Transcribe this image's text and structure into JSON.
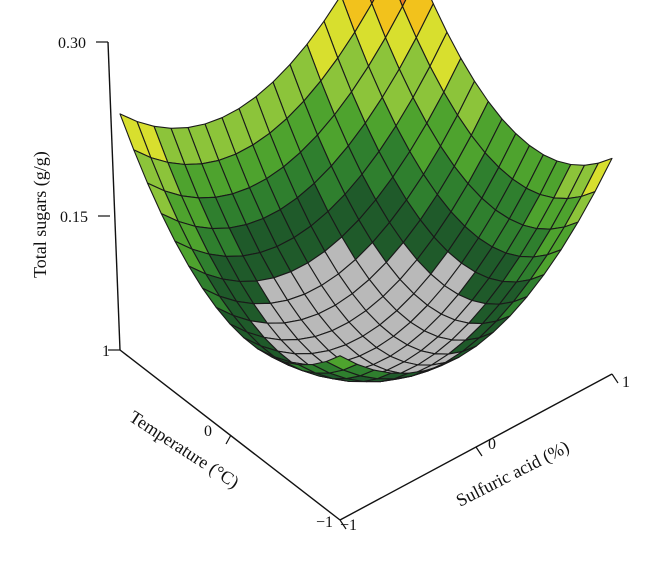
{
  "chart_data": {
    "type": "surface",
    "title": "",
    "xlabel": "Sulfuric acid (%)",
    "ylabel": "Temperature (°C)",
    "zlabel": "Total sugars (g/g)",
    "x_range": [
      -1,
      1
    ],
    "y_range": [
      -1,
      1
    ],
    "z_range": [
      0.0,
      0.3
    ],
    "x_ticks": [
      "−1",
      "0",
      "1"
    ],
    "y_ticks": [
      "−1",
      "0",
      "1"
    ],
    "z_ticks": [
      "0.30",
      "0.15"
    ],
    "grid_size": 16,
    "surface": {
      "model": "quadratic",
      "min_value": 0.05,
      "max_value": 0.295,
      "description_values": {
        "center": 0.05,
        "corner_x_max_y_max": 0.295,
        "corner_x_max_y_min": 0.21,
        "corner_x_min_y_max": 0.23,
        "corner_x_min_y_min": 0.16
      }
    },
    "colormap": [
      "#b9b9b9",
      "#1f5a2a",
      "#2f7f2e",
      "#4ea32e",
      "#8cc43a",
      "#d8df2e",
      "#f2c21c",
      "#ee7d20",
      "#d42a1f"
    ]
  }
}
